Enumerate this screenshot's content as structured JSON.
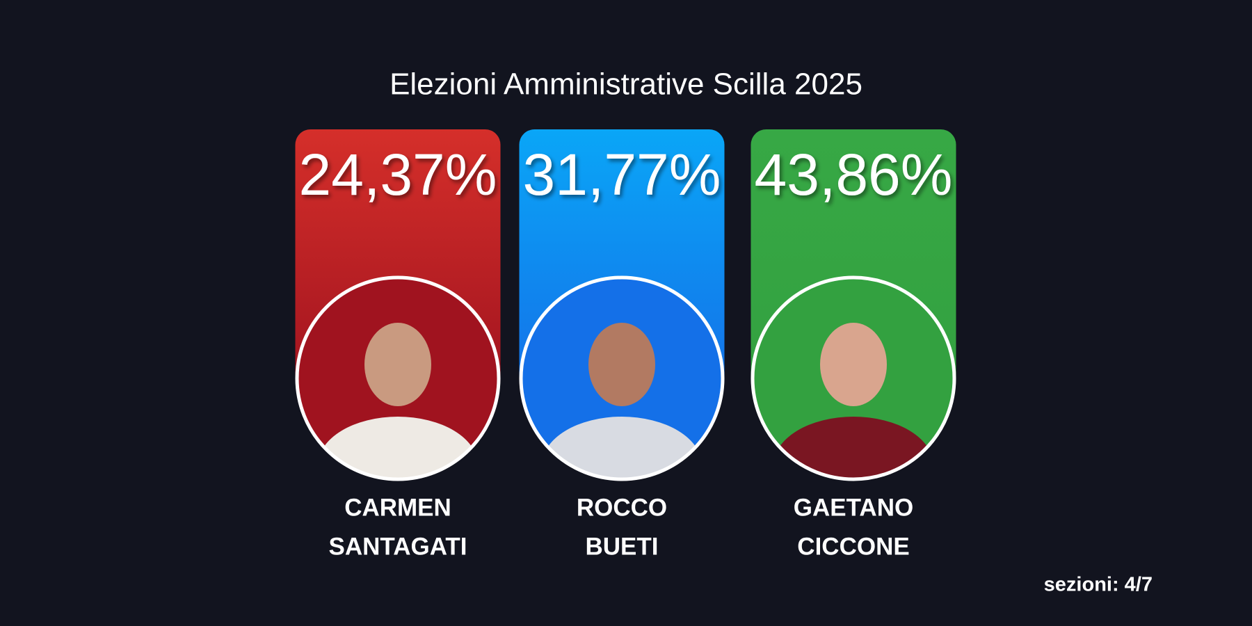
{
  "title": "Elezioni Amministrative Scilla  2025",
  "candidates": [
    {
      "percent": "24,37%",
      "name": [
        "CARMEN",
        "SANTAGATI"
      ],
      "color": [
        "#d52f2a",
        "#a0131f"
      ]
    },
    {
      "percent": "31,77%",
      "name": [
        "ROCCO",
        "BUETI"
      ],
      "color": [
        "#0aa6f7",
        "#1470e8"
      ]
    },
    {
      "percent": "43,86%",
      "name": [
        "GAETANO",
        "CICCONE"
      ],
      "color": [
        "#37a845",
        "#33a140"
      ]
    }
  ],
  "footer": "sezioni: 4/7"
}
